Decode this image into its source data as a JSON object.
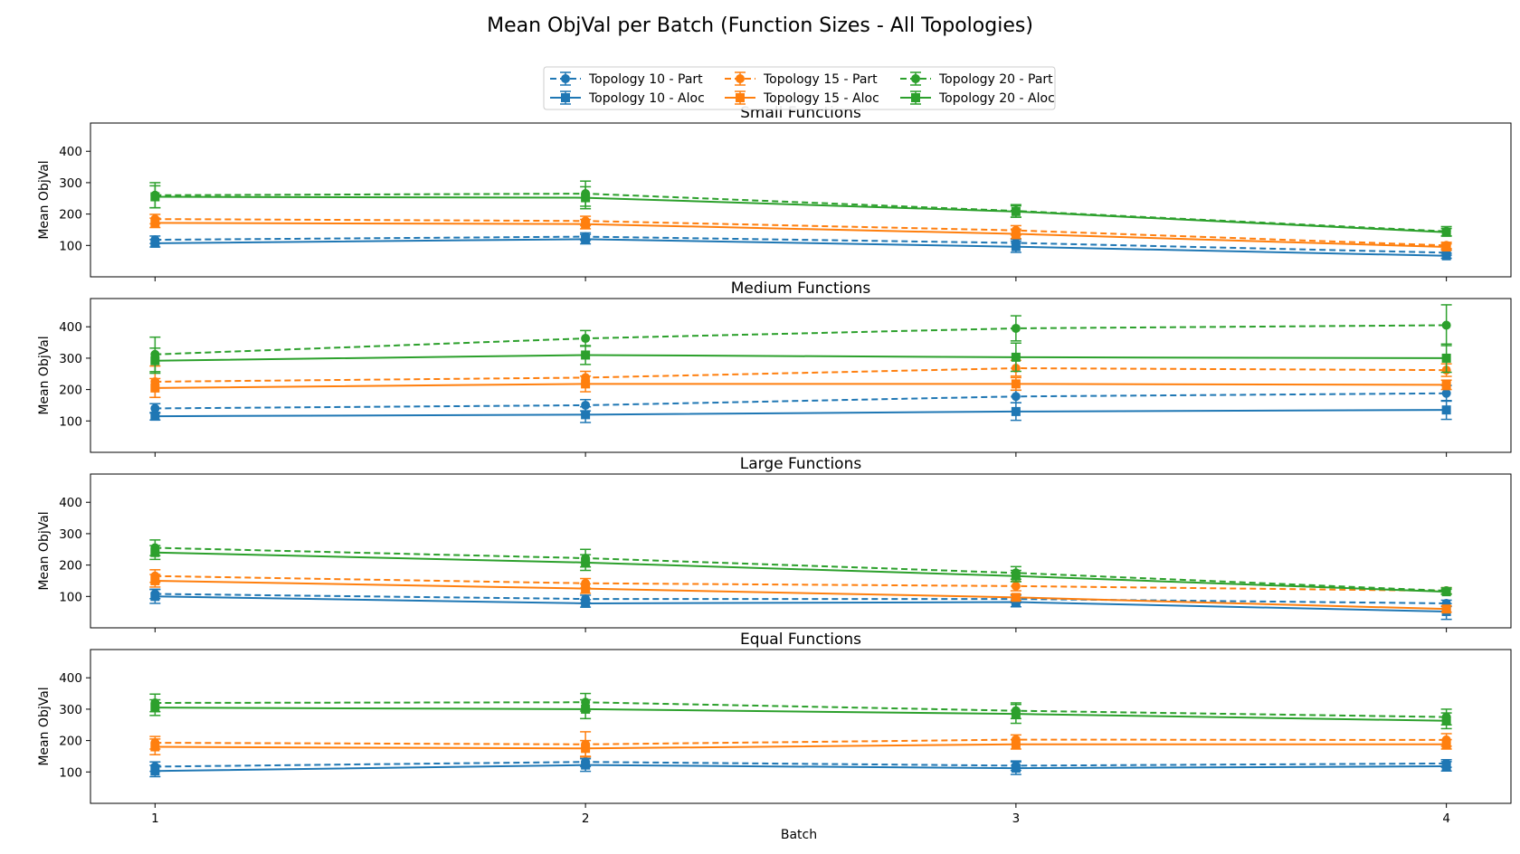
{
  "figure": {
    "title": "Mean ObjVal per Batch (Function Sizes - All Topologies)",
    "xlabel": "Batch",
    "colors": {
      "topology_10": "#1f77b4",
      "topology_15": "#ff7f0e",
      "topology_20": "#2ca02c"
    }
  },
  "legend": {
    "placement": "top-center",
    "columns": 3,
    "entries": [
      {
        "label": "Topology 10 - Part",
        "color": "#1f77b4",
        "style": "dashed",
        "marker": "circle"
      },
      {
        "label": "Topology 10 - Aloc",
        "color": "#1f77b4",
        "style": "solid",
        "marker": "square"
      },
      {
        "label": "Topology 15 - Part",
        "color": "#ff7f0e",
        "style": "dashed",
        "marker": "circle"
      },
      {
        "label": "Topology 15 - Aloc",
        "color": "#ff7f0e",
        "style": "solid",
        "marker": "square"
      },
      {
        "label": "Topology 20 - Part",
        "color": "#2ca02c",
        "style": "dashed",
        "marker": "circle"
      },
      {
        "label": "Topology 20 - Aloc",
        "color": "#2ca02c",
        "style": "solid",
        "marker": "square"
      }
    ]
  },
  "chart_data": [
    {
      "type": "line",
      "title": "Small Functions",
      "xlabel": "",
      "ylabel": "Mean ObjVal",
      "x": [
        1,
        2,
        3,
        4
      ],
      "xticks": [
        "1",
        "2",
        "3",
        "4"
      ],
      "xlim": [
        0.85,
        4.15
      ],
      "ylim": [
        0,
        490
      ],
      "yticks": [
        100,
        200,
        300,
        400
      ],
      "grid": false,
      "series": [
        {
          "name": "Topology 10 - Part",
          "color": "#1f77b4",
          "style": "dashed",
          "marker": "circle",
          "values": [
            118,
            128,
            108,
            77
          ],
          "errors": [
            12,
            12,
            12,
            8
          ]
        },
        {
          "name": "Topology 10 - Aloc",
          "color": "#1f77b4",
          "style": "solid",
          "marker": "square",
          "values": [
            107,
            120,
            96,
            67
          ],
          "errors": [
            12,
            15,
            18,
            8
          ]
        },
        {
          "name": "Topology 15 - Part",
          "color": "#ff7f0e",
          "style": "dashed",
          "marker": "circle",
          "values": [
            184,
            178,
            148,
            100
          ],
          "errors": [
            15,
            15,
            15,
            10
          ]
        },
        {
          "name": "Topology 15 - Aloc",
          "color": "#ff7f0e",
          "style": "solid",
          "marker": "square",
          "values": [
            172,
            168,
            137,
            95
          ],
          "errors": [
            15,
            15,
            15,
            10
          ]
        },
        {
          "name": "Topology 20 - Part",
          "color": "#2ca02c",
          "style": "dashed",
          "marker": "circle",
          "values": [
            260,
            265,
            210,
            145
          ],
          "errors": [
            40,
            40,
            20,
            15
          ]
        },
        {
          "name": "Topology 20 - Aloc",
          "color": "#2ca02c",
          "style": "solid",
          "marker": "square",
          "values": [
            255,
            252,
            208,
            142
          ],
          "errors": [
            35,
            35,
            18,
            12
          ]
        }
      ]
    },
    {
      "type": "line",
      "title": "Medium Functions",
      "xlabel": "",
      "ylabel": "Mean ObjVal",
      "x": [
        1,
        2,
        3,
        4
      ],
      "xticks": [
        "1",
        "2",
        "3",
        "4"
      ],
      "xlim": [
        0.85,
        4.15
      ],
      "ylim": [
        0,
        490
      ],
      "yticks": [
        100,
        200,
        300,
        400
      ],
      "grid": false,
      "series": [
        {
          "name": "Topology 10 - Part",
          "color": "#1f77b4",
          "style": "dashed",
          "marker": "circle",
          "values": [
            140,
            150,
            178,
            188
          ],
          "errors": [
            15,
            18,
            20,
            25
          ]
        },
        {
          "name": "Topology 10 - Aloc",
          "color": "#1f77b4",
          "style": "solid",
          "marker": "square",
          "values": [
            115,
            120,
            130,
            135
          ],
          "errors": [
            12,
            25,
            28,
            30
          ]
        },
        {
          "name": "Topology 15 - Part",
          "color": "#ff7f0e",
          "style": "dashed",
          "marker": "circle",
          "values": [
            225,
            238,
            268,
            262
          ],
          "errors": [
            50,
            20,
            25,
            20
          ]
        },
        {
          "name": "Topology 15 - Aloc",
          "color": "#ff7f0e",
          "style": "solid",
          "marker": "square",
          "values": [
            205,
            218,
            218,
            215
          ],
          "errors": [
            30,
            25,
            20,
            15
          ]
        },
        {
          "name": "Topology 20 - Part",
          "color": "#2ca02c",
          "style": "dashed",
          "marker": "circle",
          "values": [
            312,
            363,
            395,
            405
          ],
          "errors": [
            55,
            25,
            40,
            65
          ]
        },
        {
          "name": "Topology 20 - Aloc",
          "color": "#2ca02c",
          "style": "solid",
          "marker": "square",
          "values": [
            292,
            310,
            303,
            300
          ],
          "errors": [
            40,
            30,
            45,
            45
          ]
        }
      ]
    },
    {
      "type": "line",
      "title": "Large Functions",
      "xlabel": "",
      "ylabel": "Mean ObjVal",
      "x": [
        1,
        2,
        3,
        4
      ],
      "xticks": [
        "1",
        "2",
        "3",
        "4"
      ],
      "xlim": [
        0.85,
        4.15
      ],
      "ylim": [
        0,
        490
      ],
      "yticks": [
        100,
        200,
        300,
        400
      ],
      "grid": false,
      "series": [
        {
          "name": "Topology 10 - Part",
          "color": "#1f77b4",
          "style": "dashed",
          "marker": "circle",
          "values": [
            108,
            92,
            92,
            78
          ],
          "errors": [
            15,
            12,
            12,
            10
          ]
        },
        {
          "name": "Topology 10 - Aloc",
          "color": "#1f77b4",
          "style": "solid",
          "marker": "square",
          "values": [
            100,
            78,
            82,
            52
          ],
          "errors": [
            22,
            12,
            15,
            25
          ]
        },
        {
          "name": "Topology 15 - Part",
          "color": "#ff7f0e",
          "style": "dashed",
          "marker": "circle",
          "values": [
            165,
            142,
            133,
            118
          ],
          "errors": [
            20,
            15,
            15,
            10
          ]
        },
        {
          "name": "Topology 15 - Aloc",
          "color": "#ff7f0e",
          "style": "solid",
          "marker": "square",
          "values": [
            150,
            125,
            97,
            60
          ],
          "errors": [
            20,
            15,
            10,
            10
          ]
        },
        {
          "name": "Topology 20 - Part",
          "color": "#2ca02c",
          "style": "dashed",
          "marker": "circle",
          "values": [
            255,
            222,
            175,
            118
          ],
          "errors": [
            25,
            28,
            20,
            10
          ]
        },
        {
          "name": "Topology 20 - Aloc",
          "color": "#2ca02c",
          "style": "solid",
          "marker": "square",
          "values": [
            240,
            208,
            165,
            115
          ],
          "errors": [
            22,
            25,
            18,
            8
          ]
        }
      ]
    },
    {
      "type": "line",
      "title": "Equal Functions",
      "xlabel": "Batch",
      "ylabel": "Mean ObjVal",
      "x": [
        1,
        2,
        3,
        4
      ],
      "xticks": [
        "1",
        "2",
        "3",
        "4"
      ],
      "xlim": [
        0.85,
        4.15
      ],
      "ylim": [
        0,
        490
      ],
      "yticks": [
        100,
        200,
        300,
        400
      ],
      "grid": false,
      "series": [
        {
          "name": "Topology 10 - Part",
          "color": "#1f77b4",
          "style": "dashed",
          "marker": "circle",
          "values": [
            117,
            132,
            120,
            127
          ],
          "errors": [
            15,
            15,
            15,
            12
          ]
        },
        {
          "name": "Topology 10 - Aloc",
          "color": "#1f77b4",
          "style": "solid",
          "marker": "square",
          "values": [
            103,
            122,
            112,
            118
          ],
          "errors": [
            18,
            20,
            20,
            15
          ]
        },
        {
          "name": "Topology 15 - Part",
          "color": "#ff7f0e",
          "style": "dashed",
          "marker": "circle",
          "values": [
            193,
            188,
            203,
            202
          ],
          "errors": [
            20,
            40,
            15,
            20
          ]
        },
        {
          "name": "Topology 15 - Aloc",
          "color": "#ff7f0e",
          "style": "solid",
          "marker": "square",
          "values": [
            180,
            175,
            188,
            188
          ],
          "errors": [
            25,
            25,
            15,
            15
          ]
        },
        {
          "name": "Topology 20 - Part",
          "color": "#2ca02c",
          "style": "dashed",
          "marker": "circle",
          "values": [
            320,
            322,
            295,
            275
          ],
          "errors": [
            28,
            28,
            25,
            25
          ]
        },
        {
          "name": "Topology 20 - Aloc",
          "color": "#2ca02c",
          "style": "solid",
          "marker": "square",
          "values": [
            305,
            300,
            285,
            263
          ],
          "errors": [
            25,
            30,
            30,
            25
          ]
        }
      ]
    }
  ]
}
